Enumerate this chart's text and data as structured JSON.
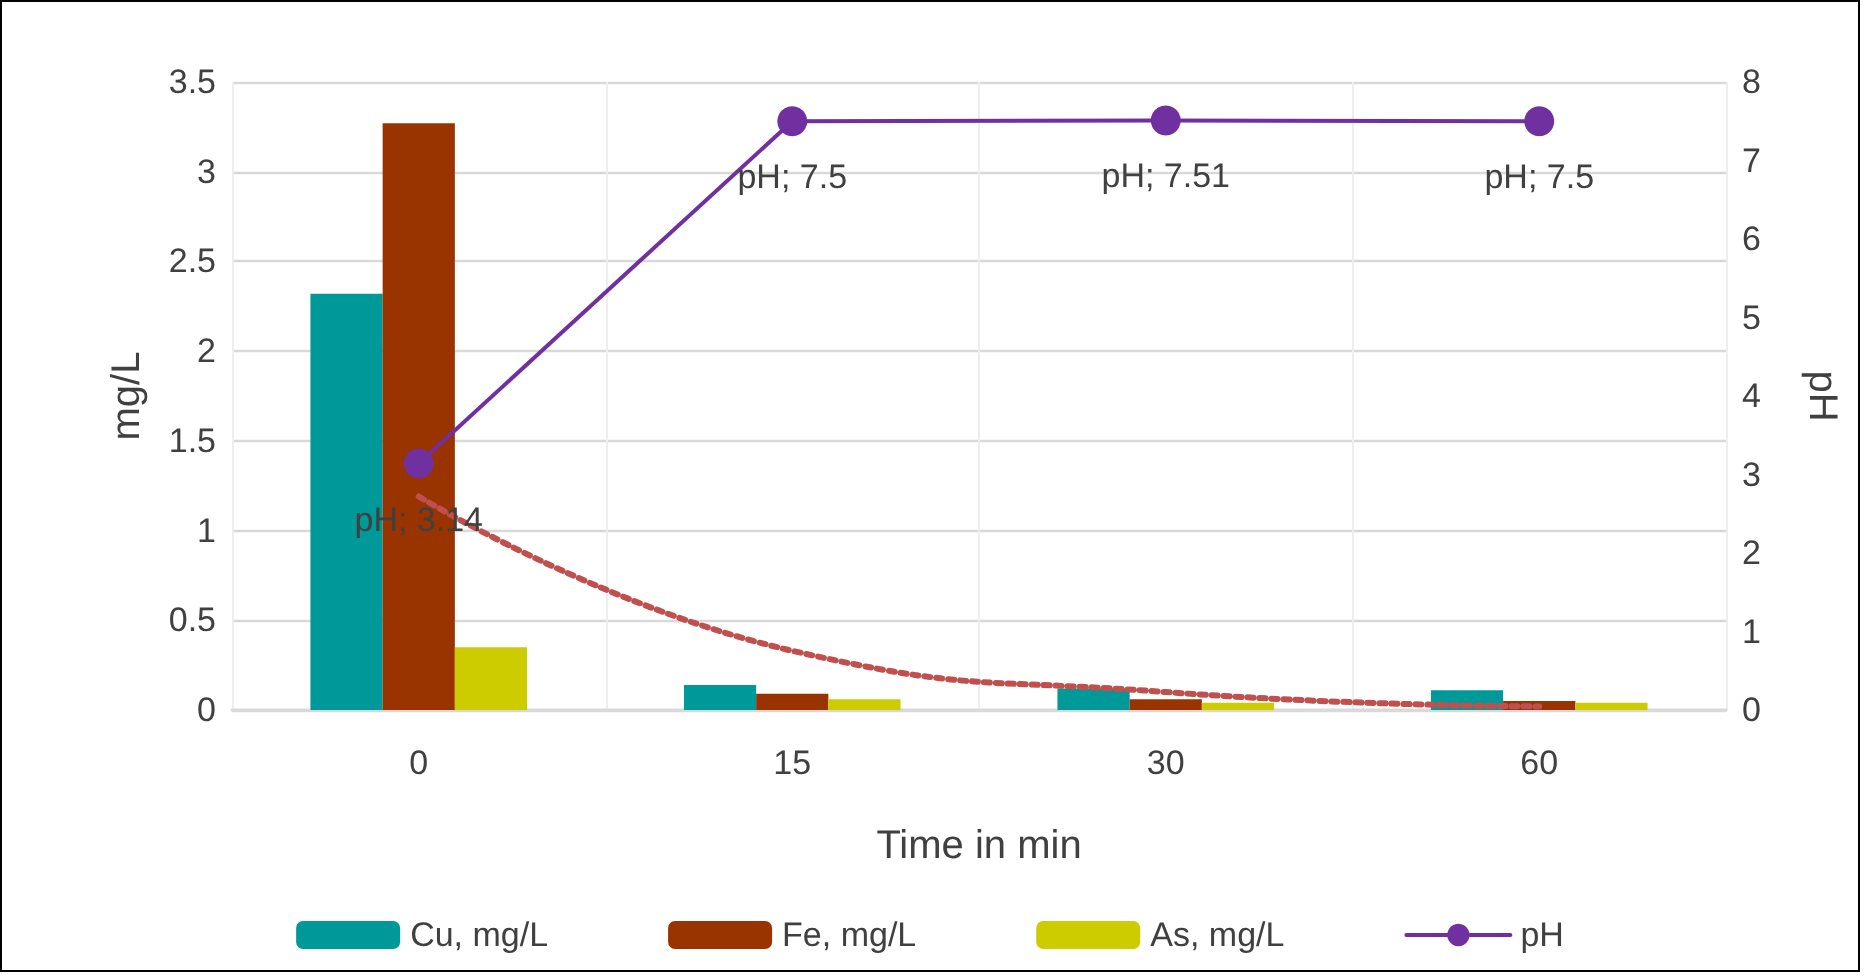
{
  "chart_data": {
    "type": "bar",
    "xlabel": "Time in min",
    "ylabel": "mg/L",
    "y2label": "pH",
    "categories": [
      "0",
      "15",
      "30",
      "60"
    ],
    "series": [
      {
        "name": "Cu, mg/L",
        "color": "#009999",
        "values": [
          2.32,
          0.14,
          0.12,
          0.11
        ]
      },
      {
        "name": "Fe, mg/L",
        "color": "#993300",
        "values": [
          3.27,
          0.09,
          0.06,
          0.05
        ]
      },
      {
        "name": "As, mg/L",
        "color": "#cccc00",
        "values": [
          0.35,
          0.06,
          0.04,
          0.04
        ]
      },
      {
        "name": "pH",
        "type": "line",
        "axis": "y2",
        "color": "#7030a0",
        "marker": "circle",
        "values": [
          3.14,
          7.5,
          7.51,
          7.5
        ],
        "value_labels": [
          "pH; 3.14",
          "pH; 7.5",
          "pH; 7.51",
          "pH; 7.5"
        ]
      },
      {
        "type": "line",
        "color": "#c0504d",
        "line_style": "dotted",
        "marker": "none",
        "values": [
          1.19,
          0.33,
          0.1,
          0.02
        ]
      }
    ],
    "ylim": [
      0,
      3.5
    ],
    "yticks": [
      0,
      0.5,
      1,
      1.5,
      2,
      2.5,
      3,
      3.5
    ],
    "y2lim": [
      0,
      8
    ],
    "y2ticks": [
      0,
      1,
      2,
      3,
      4,
      5,
      6,
      7,
      8
    ],
    "grid": true,
    "legend": "bottom"
  }
}
